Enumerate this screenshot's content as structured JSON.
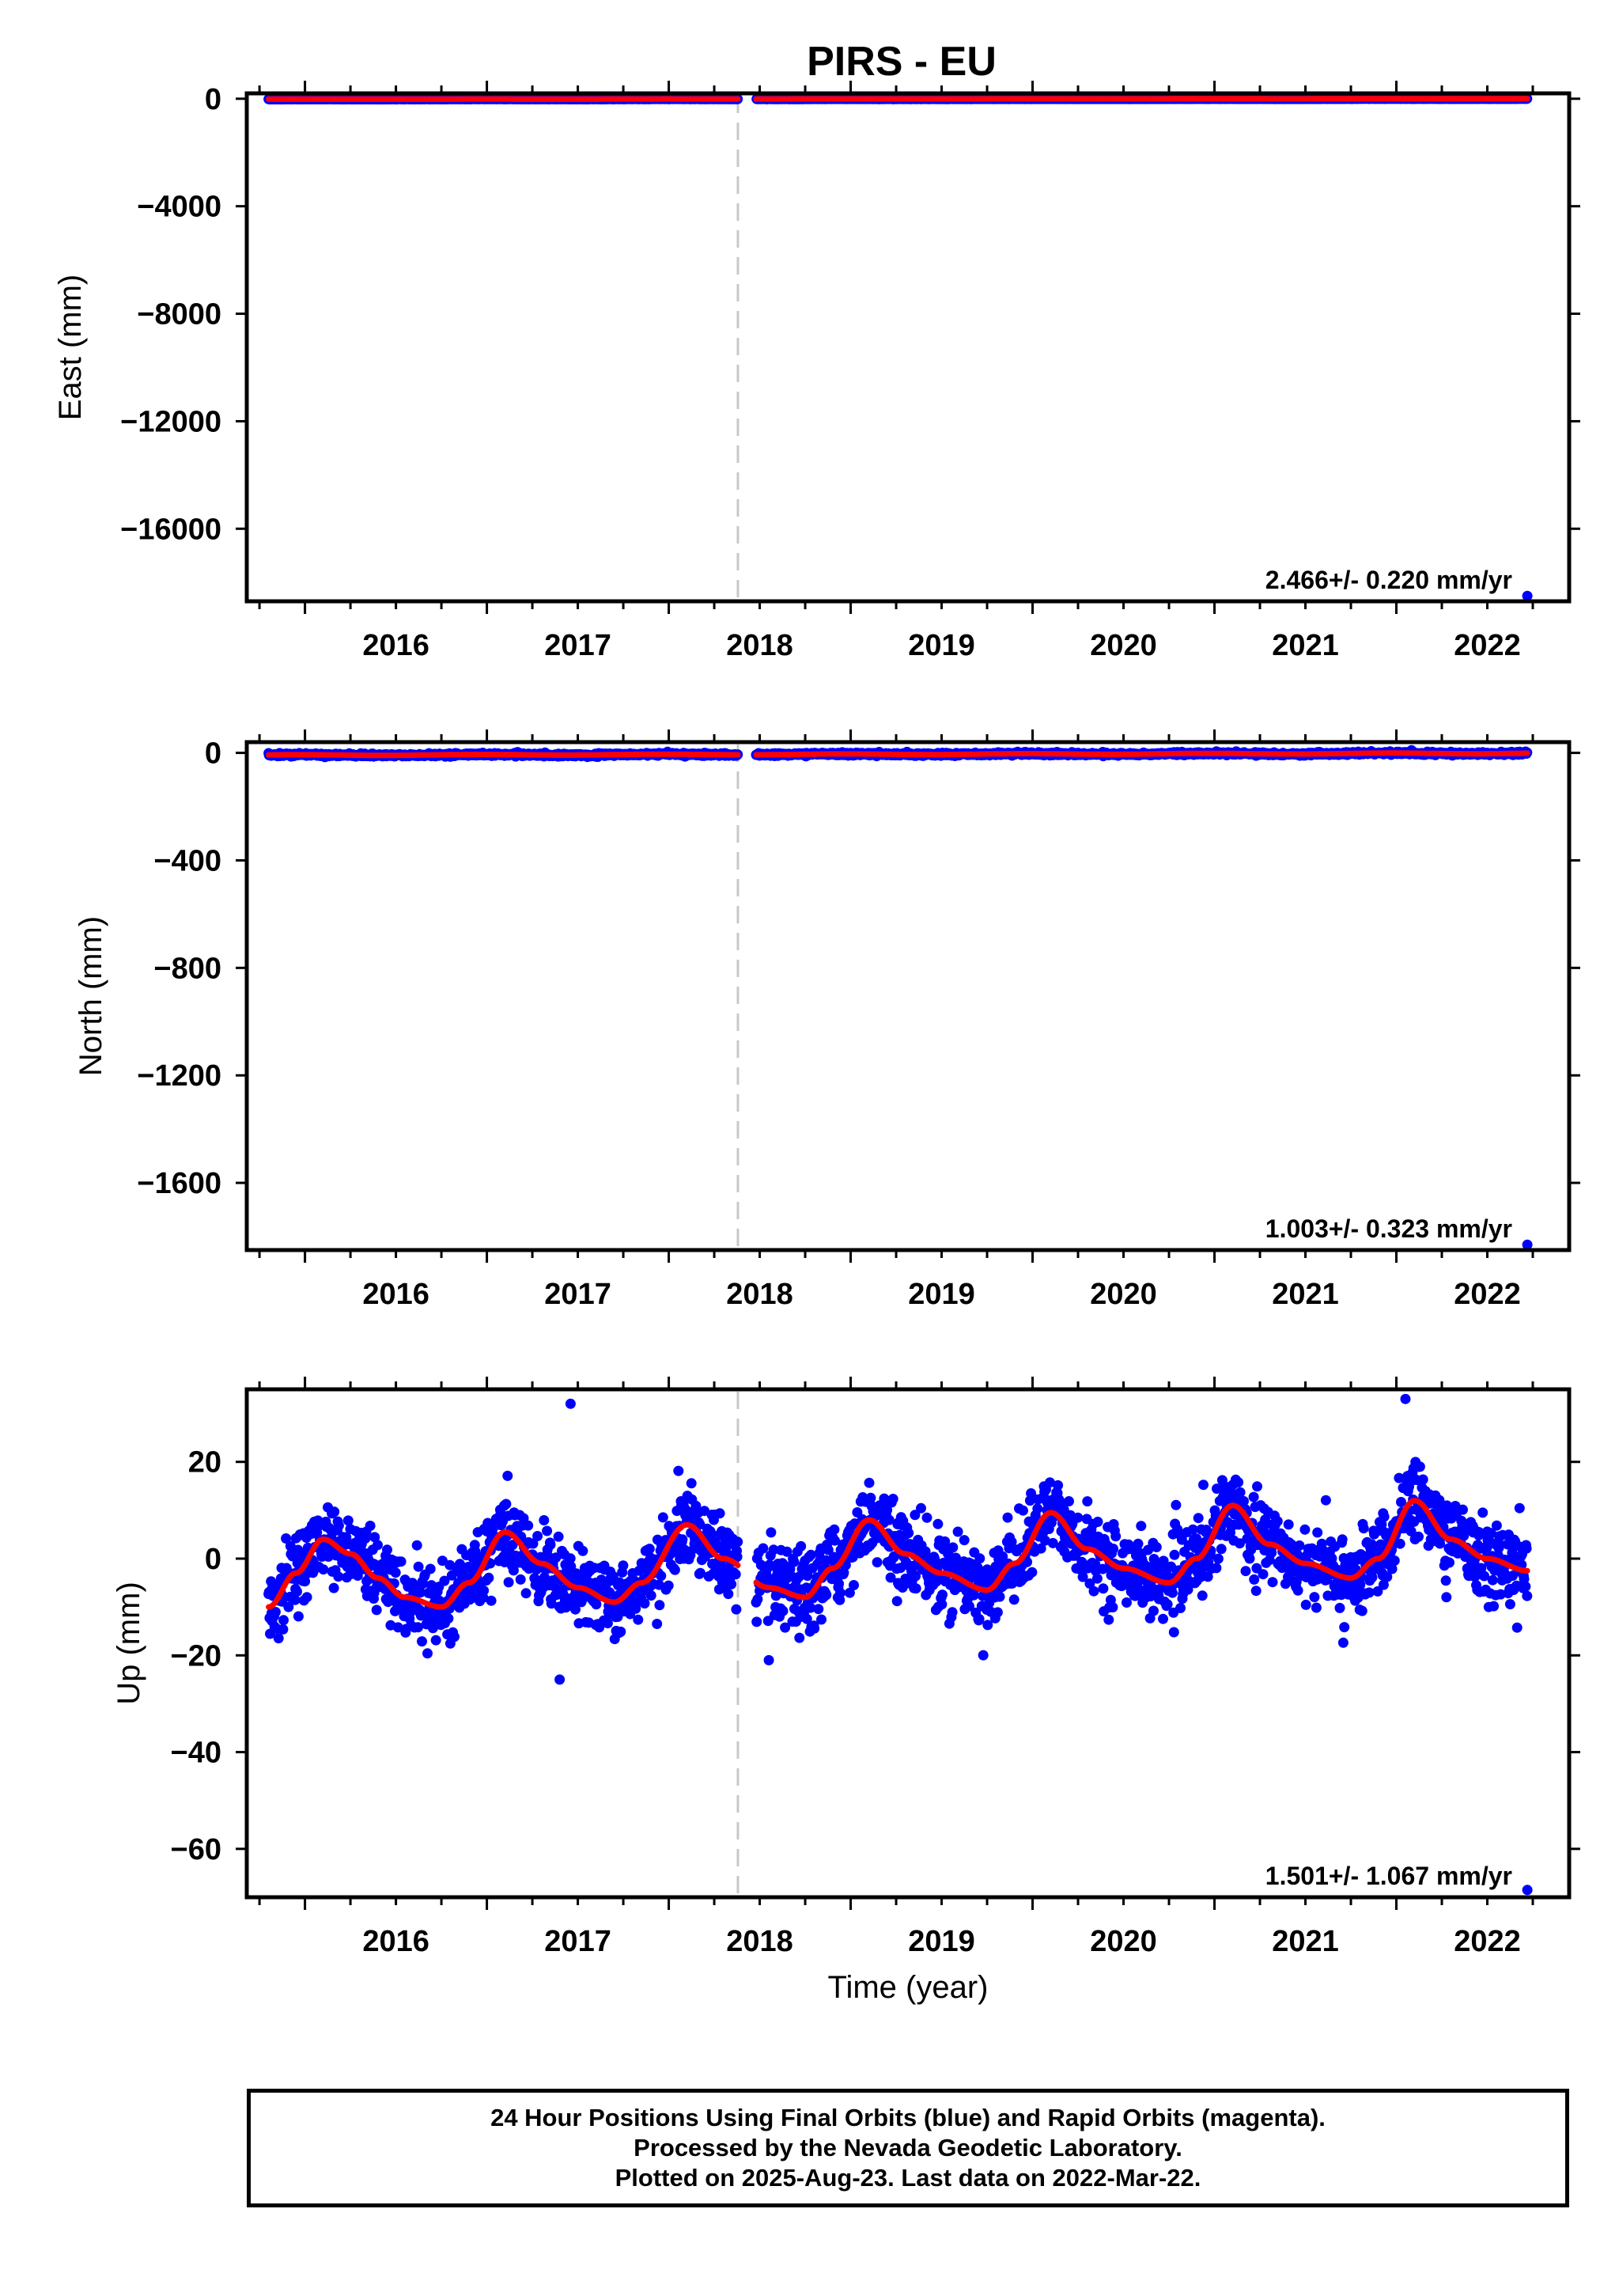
{
  "title": "PIRS - EU",
  "colors": {
    "final_orbits": "#0000ff",
    "model_fit": "#ff0000",
    "event_marker": "#c8c8c8"
  },
  "footer": {
    "line1": "24 Hour Positions Using Final Orbits (blue) and Rapid Orbits (magenta).",
    "line2": "Processed by the Nevada Geodetic Laboratory.",
    "line3": "Plotted on 2025-Aug-23. Last data on 2022-Mar-22."
  },
  "chart_data": [
    {
      "type": "scatter",
      "component": "east",
      "ylabel": "East (mm)",
      "xlabel": "",
      "xlim": [
        2015.18,
        2022.45
      ],
      "ylim": [
        -18700,
        200
      ],
      "xticks": [
        2016,
        2017,
        2018,
        2019,
        2020,
        2021,
        2022
      ],
      "yticks": [
        0,
        -4000,
        -8000,
        -12000,
        -16000
      ],
      "ytick_labels": [
        "0",
        "−4000",
        "−8000",
        "−12000",
        "−16000"
      ],
      "rate": "2.466+/- 0.220 mm/yr",
      "event_line_x": 2017.88,
      "data_start": 2015.3,
      "data_end": 2022.22,
      "gap": [
        2017.88,
        2017.98
      ],
      "noise_sd_mm": 2.5,
      "trend": {
        "offset_mm": -6,
        "rate_mm_per_yr": 2.466,
        "annual_amplitude_mm": 1.5
      },
      "outliers": [
        {
          "x": 2022.22,
          "y": -18500
        }
      ]
    },
    {
      "type": "scatter",
      "component": "north",
      "ylabel": "North (mm)",
      "xlabel": "",
      "xlim": [
        2015.18,
        2022.45
      ],
      "ylim": [
        -1850,
        40
      ],
      "xticks": [
        2016,
        2017,
        2018,
        2019,
        2020,
        2021,
        2022
      ],
      "yticks": [
        0,
        -400,
        -800,
        -1200,
        -1600
      ],
      "ytick_labels": [
        "0",
        "−400",
        "−800",
        "−1200",
        "−1600"
      ],
      "rate": "1.003+/- 0.323 mm/yr",
      "event_line_x": 2017.88,
      "data_start": 2015.3,
      "data_end": 2022.22,
      "gap": [
        2017.88,
        2017.98
      ],
      "noise_sd_mm": 2.5,
      "trend": {
        "offset_mm": -5,
        "rate_mm_per_yr": 1.003,
        "annual_amplitude_mm": 1.5
      },
      "outliers": [
        {
          "x": 2022.22,
          "y": -1830
        }
      ]
    },
    {
      "type": "scatter",
      "component": "up",
      "ylabel": "Up (mm)",
      "xlabel": "Time (year)",
      "xlim": [
        2015.18,
        2022.45
      ],
      "ylim": [
        -70,
        35
      ],
      "xticks": [
        2016,
        2017,
        2018,
        2019,
        2020,
        2021,
        2022
      ],
      "yticks": [
        20,
        0,
        -20,
        -40,
        -60
      ],
      "ytick_labels": [
        "20",
        "0",
        "−20",
        "−40",
        "−60"
      ],
      "rate": "1.501+/- 1.067 mm/yr",
      "event_line_x": 2017.88,
      "data_start": 2015.3,
      "data_end": 2022.22,
      "gap": [
        2017.88,
        2017.98
      ],
      "noise_sd_mm": 4,
      "model_fit": {
        "x": [
          2015.3,
          2015.45,
          2015.6,
          2015.75,
          2015.9,
          2016.05,
          2016.25,
          2016.4,
          2016.6,
          2016.8,
          2017.0,
          2017.2,
          2017.35,
          2017.6,
          2017.8,
          2018.05,
          2018.25,
          2018.4,
          2018.6,
          2018.8,
          2019.0,
          2019.25,
          2019.4,
          2019.6,
          2019.8,
          2020.0,
          2020.25,
          2020.4,
          2020.6,
          2020.8,
          2021.0,
          2021.25,
          2021.4,
          2021.6,
          2021.8,
          2022.0,
          2022.22
        ],
        "y": [
          -10,
          -3,
          4,
          1,
          -4,
          -8,
          -10,
          -5,
          5.5,
          -1,
          -6,
          -9,
          -5,
          7,
          0,
          -6,
          -8,
          -2,
          8,
          1,
          -3,
          -6.5,
          -1,
          9.5,
          2,
          -2,
          -5,
          0,
          11,
          3,
          -1,
          -4,
          0,
          12,
          4,
          0,
          -2.5
        ]
      },
      "outliers": [
        {
          "x": 2016.96,
          "y": 32
        },
        {
          "x": 2021.55,
          "y": 33
        },
        {
          "x": 2016.9,
          "y": -25
        },
        {
          "x": 2018.05,
          "y": -21
        },
        {
          "x": 2022.22,
          "y": -68.5
        }
      ]
    }
  ]
}
